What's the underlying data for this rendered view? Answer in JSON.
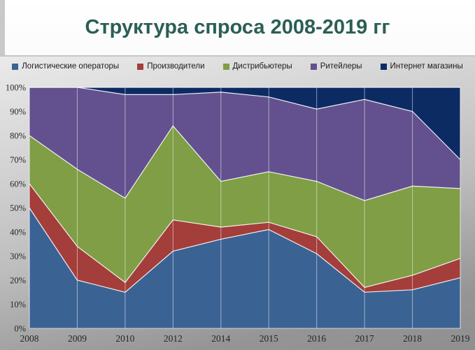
{
  "title": "Структура спроса 2008-2019 гг",
  "colors": {
    "title_text": "#2b5f55",
    "background_top": "#eaeaea",
    "background_bottom": "#8f8f8f",
    "gridline": "rgba(255,255,255,0.5)",
    "series_boundary": "rgba(255,255,255,0.9)",
    "axis_text": "#262626"
  },
  "chart_data": {
    "type": "area",
    "stacking": "percent",
    "title": "Структура спроса 2008-2019 гг",
    "xlabel": "",
    "ylabel": "",
    "ylim": [
      0,
      100
    ],
    "legend_position": "top",
    "grid": "vertical white gridlines over areas",
    "categories": [
      "2008",
      "2009",
      "2010",
      "2012",
      "2014",
      "2015",
      "2016",
      "2017",
      "2018",
      "2019"
    ],
    "y_tick_labels": [
      "0%",
      "10%",
      "20%",
      "30%",
      "40%",
      "50%",
      "60%",
      "70%",
      "80%",
      "90%",
      "100%"
    ],
    "series": [
      {
        "name": "Логистические операторы",
        "color": "#3a6394",
        "values": [
          50,
          20,
          15,
          32,
          37,
          41,
          31,
          15,
          16,
          21
        ]
      },
      {
        "name": "Производители",
        "color": "#a33e3b",
        "values": [
          10,
          14,
          4,
          13,
          5,
          3,
          7,
          2,
          6,
          8
        ]
      },
      {
        "name": "Дистрибьютеры",
        "color": "#7f9e45",
        "values": [
          20,
          32,
          35,
          39,
          19,
          21,
          23,
          36,
          37,
          29
        ]
      },
      {
        "name": "Ритейлеры",
        "color": "#63518f",
        "values": [
          20,
          34,
          43,
          13,
          37,
          31,
          30,
          42,
          31,
          12
        ]
      },
      {
        "name": "Интернет магазины",
        "color": "#0d2b63",
        "values": [
          0,
          0,
          3,
          3,
          2,
          4,
          9,
          5,
          10,
          30
        ]
      }
    ]
  }
}
